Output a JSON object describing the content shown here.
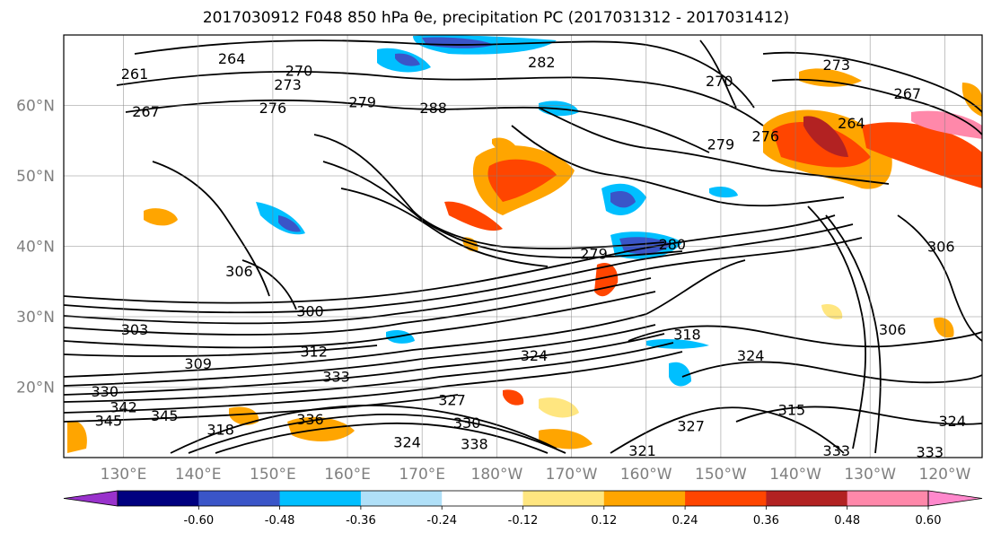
{
  "title": "2017030912 F048 850 hPa θe, precipitation PC (2017031312 - 2017031412)",
  "map": {
    "projection": "PlateCarree",
    "lon_range": [
      122,
      245
    ],
    "lat_range": [
      10,
      70
    ],
    "lat_ticks": [
      {
        "value": 60,
        "label": "60°N"
      },
      {
        "value": 50,
        "label": "50°N"
      },
      {
        "value": 40,
        "label": "40°N"
      },
      {
        "value": 30,
        "label": "30°N"
      },
      {
        "value": 20,
        "label": "20°N"
      }
    ],
    "lon_ticks": [
      {
        "value": 130,
        "label": "130°E"
      },
      {
        "value": 140,
        "label": "140°E"
      },
      {
        "value": 150,
        "label": "150°E"
      },
      {
        "value": 160,
        "label": "160°E"
      },
      {
        "value": 170,
        "label": "170°E"
      },
      {
        "value": 180,
        "label": "180°W"
      },
      {
        "value": 190,
        "label": "170°W"
      },
      {
        "value": 200,
        "label": "160°W"
      },
      {
        "value": 210,
        "label": "150°W"
      },
      {
        "value": 220,
        "label": "140°W"
      },
      {
        "value": 230,
        "label": "130°W"
      },
      {
        "value": 240,
        "label": "120°W"
      }
    ],
    "contour_labels": [
      {
        "text": "261",
        "lon": 131.5,
        "lat": 64.5
      },
      {
        "text": "264",
        "lon": 144.5,
        "lat": 66.7
      },
      {
        "text": "270",
        "lon": 153.5,
        "lat": 65.0
      },
      {
        "text": "273",
        "lon": 152.0,
        "lat": 63.0
      },
      {
        "text": "267",
        "lon": 133.0,
        "lat": 59.2
      },
      {
        "text": "276",
        "lon": 150.0,
        "lat": 59.7
      },
      {
        "text": "279",
        "lon": 162.0,
        "lat": 60.5
      },
      {
        "text": "288",
        "lon": 171.5,
        "lat": 59.7
      },
      {
        "text": "282",
        "lon": 186.0,
        "lat": 66.2
      },
      {
        "text": "270",
        "lon": 209.8,
        "lat": 63.5
      },
      {
        "text": "273",
        "lon": 225.5,
        "lat": 65.8
      },
      {
        "text": "267",
        "lon": 235.0,
        "lat": 61.7
      },
      {
        "text": "264",
        "lon": 227.5,
        "lat": 57.5
      },
      {
        "text": "279",
        "lon": 210.0,
        "lat": 54.5
      },
      {
        "text": "276",
        "lon": 216.0,
        "lat": 55.7
      },
      {
        "text": "279",
        "lon": 193.0,
        "lat": 39.0
      },
      {
        "text": "280",
        "lon": 203.5,
        "lat": 40.3
      },
      {
        "text": "306",
        "lon": 239.5,
        "lat": 40.0
      },
      {
        "text": "300",
        "lon": 155.0,
        "lat": 30.8
      },
      {
        "text": "303",
        "lon": 131.5,
        "lat": 28.2
      },
      {
        "text": "306",
        "lon": 145.5,
        "lat": 36.5
      },
      {
        "text": "312",
        "lon": 155.5,
        "lat": 25.1
      },
      {
        "text": "309",
        "lon": 140.0,
        "lat": 23.4
      },
      {
        "text": "318",
        "lon": 205.5,
        "lat": 27.5
      },
      {
        "text": "324",
        "lon": 185.0,
        "lat": 24.5
      },
      {
        "text": "324",
        "lon": 214.0,
        "lat": 24.5
      },
      {
        "text": "306",
        "lon": 233.0,
        "lat": 28.2
      },
      {
        "text": "333",
        "lon": 158.5,
        "lat": 21.5
      },
      {
        "text": "330",
        "lon": 127.5,
        "lat": 19.4
      },
      {
        "text": "342",
        "lon": 130.0,
        "lat": 17.2
      },
      {
        "text": "345",
        "lon": 128.0,
        "lat": 15.3
      },
      {
        "text": "345",
        "lon": 135.5,
        "lat": 16.0
      },
      {
        "text": "336",
        "lon": 155.0,
        "lat": 15.5
      },
      {
        "text": "318",
        "lon": 143.0,
        "lat": 14.0
      },
      {
        "text": "327",
        "lon": 174.0,
        "lat": 18.2
      },
      {
        "text": "330",
        "lon": 176.0,
        "lat": 15.0
      },
      {
        "text": "338",
        "lon": 177.0,
        "lat": 12.0
      },
      {
        "text": "324",
        "lon": 168.0,
        "lat": 12.2
      },
      {
        "text": "327",
        "lon": 206.0,
        "lat": 14.5
      },
      {
        "text": "321",
        "lon": 199.5,
        "lat": 11.0
      },
      {
        "text": "315",
        "lon": 219.5,
        "lat": 16.8
      },
      {
        "text": "324",
        "lon": 241.0,
        "lat": 15.2
      },
      {
        "text": "333",
        "lon": 225.5,
        "lat": 11.0
      },
      {
        "text": "333",
        "lon": 238.0,
        "lat": 10.8
      }
    ]
  },
  "colorbar": {
    "ticks": [
      "-0.60",
      "-0.48",
      "-0.36",
      "-0.24",
      "-0.12",
      "0.12",
      "0.24",
      "0.36",
      "0.48",
      "0.60"
    ],
    "colors": [
      "#9932cc",
      "#000080",
      "#3a55c8",
      "#00bfff",
      "#b0e0f8",
      "#ffffff",
      "#ffe680",
      "#ffa500",
      "#ff4500",
      "#b22222",
      "#ff88aa",
      "#ff88cc"
    ],
    "extend": "both"
  }
}
